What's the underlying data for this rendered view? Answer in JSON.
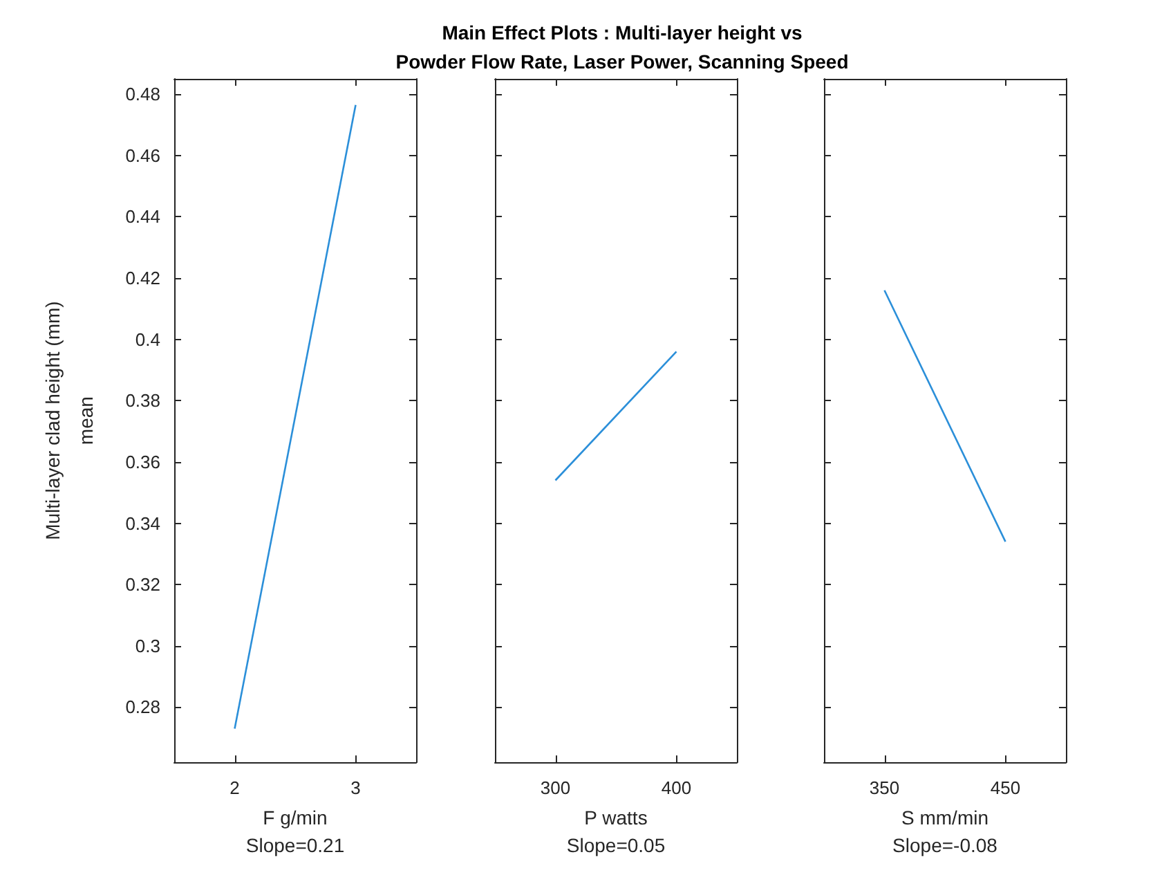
{
  "chart_data": [
    {
      "type": "line",
      "ylabel": "Multi-layer clad height (mm)\nmean",
      "xlabel": "F g/min\nSlope=0.21",
      "x": [
        2,
        3
      ],
      "series": [
        {
          "color": "#2b8fd9",
          "values": [
            0.273,
            0.4765
          ]
        }
      ],
      "xlim": [
        1.5,
        3.5
      ],
      "xticks": [
        2,
        3
      ],
      "ylim": [
        0.262,
        0.485
      ],
      "yticks": [
        0.28,
        0.3,
        0.32,
        0.34,
        0.36,
        0.38,
        0.4,
        0.42,
        0.44,
        0.46,
        0.48
      ],
      "grid": false,
      "marker": "none",
      "line_style": "solid"
    },
    {
      "type": "line",
      "title": "Main Effect Plots : Multi-layer height vs\nPowder Flow Rate, Laser Power, Scanning Speed",
      "xlabel": "P watts\nSlope=0.05",
      "x": [
        300,
        400
      ],
      "series": [
        {
          "color": "#2b8fd9",
          "values": [
            0.354,
            0.396
          ]
        }
      ],
      "xlim": [
        250,
        450
      ],
      "xticks": [
        300,
        400
      ],
      "ylim": [
        0.262,
        0.485
      ],
      "yticks": [
        0.28,
        0.3,
        0.32,
        0.34,
        0.36,
        0.38,
        0.4,
        0.42,
        0.44,
        0.46,
        0.48
      ],
      "tick_labels": "x",
      "grid": false,
      "marker": "none",
      "line_style": "solid"
    },
    {
      "type": "line",
      "xlabel": "S mm/min\nSlope=-0.08",
      "x": [
        350,
        450
      ],
      "series": [
        {
          "color": "#2b8fd9",
          "values": [
            0.416,
            0.334
          ]
        }
      ],
      "xlim": [
        300,
        500
      ],
      "xticks": [
        350,
        450
      ],
      "ylim": [
        0.262,
        0.485
      ],
      "yticks": [
        0.28,
        0.3,
        0.32,
        0.34,
        0.36,
        0.38,
        0.4,
        0.42,
        0.44,
        0.46,
        0.48
      ],
      "tick_labels": "x",
      "grid": false,
      "marker": "none",
      "line_style": "solid"
    }
  ]
}
